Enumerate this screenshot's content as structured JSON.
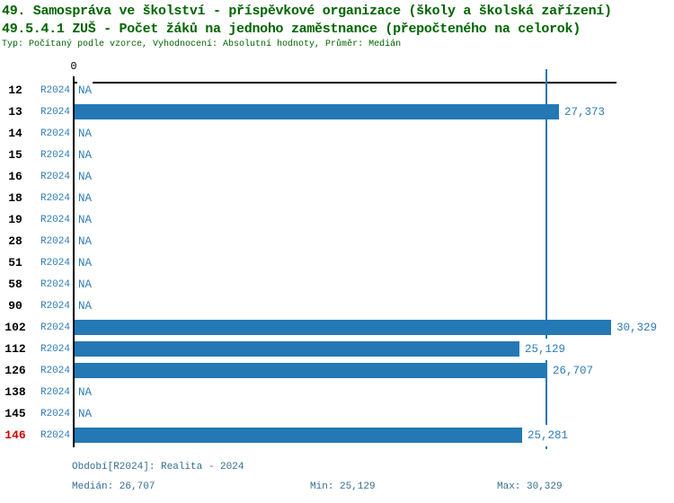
{
  "header": {
    "title_line1": "49. Samospráva ve školství - příspěvkové organizace (školy a školská zařízení)",
    "title_line2": "49.5.4.1 ZUŠ - Počet žáků na jednoho zaměstnance (přepočteného na celorok)",
    "subtitle": "Typ: Počítaný podle vzorce, Vyhodnocení: Absolutní hodnoty, Průměr: Medián"
  },
  "chart_data": {
    "type": "bar",
    "orientation": "horizontal",
    "categories": [
      "12",
      "13",
      "14",
      "15",
      "16",
      "18",
      "19",
      "28",
      "51",
      "58",
      "90",
      "102",
      "112",
      "126",
      "138",
      "145",
      "146"
    ],
    "values": [
      null,
      27373,
      null,
      null,
      null,
      null,
      null,
      null,
      null,
      null,
      null,
      30329,
      25129,
      26707,
      null,
      null,
      25281
    ],
    "value_labels": [
      "NA",
      "27,373",
      "NA",
      "NA",
      "NA",
      "NA",
      "NA",
      "NA",
      "NA",
      "NA",
      "NA",
      "30,329",
      "25,129",
      "26,707",
      "NA",
      "NA",
      "25,281"
    ],
    "period": "R2024",
    "xlim": [
      0,
      30650
    ],
    "tick_labels": [
      "0"
    ],
    "median_value": 26707,
    "min_value": 25129,
    "max_value": 30329,
    "grid": false,
    "rows": [
      {
        "id": "12",
        "period": "R2024",
        "value": null,
        "display": "NA"
      },
      {
        "id": "13",
        "period": "R2024",
        "value": 27373,
        "display": "27,373"
      },
      {
        "id": "14",
        "period": "R2024",
        "value": null,
        "display": "NA"
      },
      {
        "id": "15",
        "period": "R2024",
        "value": null,
        "display": "NA"
      },
      {
        "id": "16",
        "period": "R2024",
        "value": null,
        "display": "NA"
      },
      {
        "id": "18",
        "period": "R2024",
        "value": null,
        "display": "NA"
      },
      {
        "id": "19",
        "period": "R2024",
        "value": null,
        "display": "NA"
      },
      {
        "id": "28",
        "period": "R2024",
        "value": null,
        "display": "NA"
      },
      {
        "id": "51",
        "period": "R2024",
        "value": null,
        "display": "NA"
      },
      {
        "id": "58",
        "period": "R2024",
        "value": null,
        "display": "NA"
      },
      {
        "id": "90",
        "period": "R2024",
        "value": null,
        "display": "NA"
      },
      {
        "id": "102",
        "period": "R2024",
        "value": 30329,
        "display": "30,329"
      },
      {
        "id": "112",
        "period": "R2024",
        "value": 25129,
        "display": "25,129"
      },
      {
        "id": "126",
        "period": "R2024",
        "value": 26707,
        "display": "26,707"
      },
      {
        "id": "138",
        "period": "R2024",
        "value": null,
        "display": "NA"
      },
      {
        "id": "145",
        "period": "R2024",
        "value": null,
        "display": "NA"
      },
      {
        "id": "146",
        "period": "R2024",
        "value": 25281,
        "display": "25,281",
        "highlight": true
      }
    ],
    "axis_zero_label": "0",
    "footer": {
      "period": "Období[R2024]: Realita - 2024",
      "median": "Medián: 26,707",
      "min": "Min: 25,129",
      "max": "Max: 30,329"
    }
  },
  "colors": {
    "title_green": "#006400",
    "bar_blue": "#2478b4",
    "text_blue": "#2e7cb8",
    "footer_blue": "#346d92",
    "row_red": "#d40000",
    "axis_black": "#000000"
  }
}
